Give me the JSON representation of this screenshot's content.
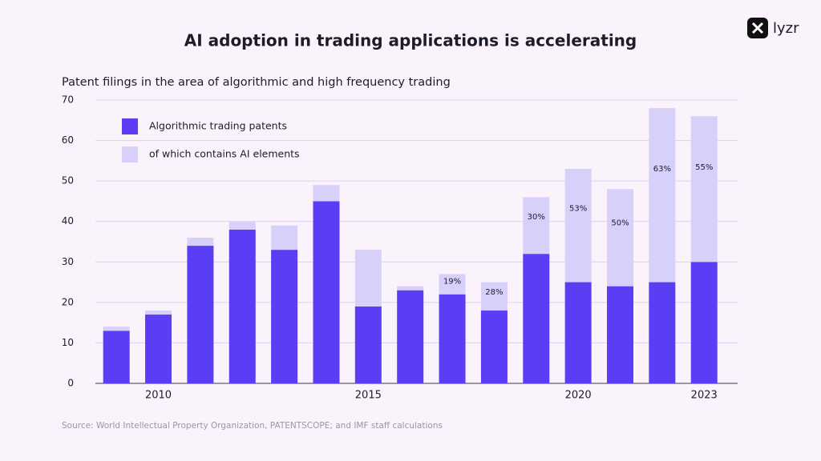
{
  "brand": "lyzr",
  "chart_data": {
    "type": "stacked_bar",
    "title": "AI adoption in trading applications is accelerating",
    "subtitle": "Patent filings in the area of algorithmic and high frequency trading",
    "source": "Source: World Intellectual Property Organization, PATENTSCOPE; and IMF staff calculations",
    "categories": [
      null,
      "2010",
      null,
      null,
      null,
      null,
      "2015",
      null,
      null,
      null,
      null,
      "2020",
      null,
      null,
      "2023"
    ],
    "series": [
      {
        "name": "Algorithmic trading patents",
        "color": "#5b3df5",
        "values": [
          13,
          17,
          34,
          38,
          33,
          45,
          19,
          23,
          22,
          18,
          32,
          25,
          24,
          25,
          30
        ]
      },
      {
        "name": "of which contains AI elements",
        "color": "#d7d0fb",
        "values": [
          1,
          1,
          2,
          2,
          6,
          4,
          14,
          1,
          5,
          7,
          14,
          28,
          24,
          43,
          36
        ]
      }
    ],
    "ai_share": {
      "values": [
        null,
        null,
        null,
        null,
        null,
        null,
        null,
        null,
        19,
        28,
        30,
        53,
        50,
        63,
        55
      ],
      "value_labels": [
        null,
        null,
        null,
        null,
        null,
        null,
        null,
        null,
        "19%",
        "28%",
        "30%",
        "53%",
        "50%",
        "63%",
        "55%"
      ]
    },
    "ylim": [
      0,
      70
    ],
    "yticks": [
      0,
      10,
      20,
      30,
      40,
      50,
      60,
      70
    ],
    "grid": true
  }
}
